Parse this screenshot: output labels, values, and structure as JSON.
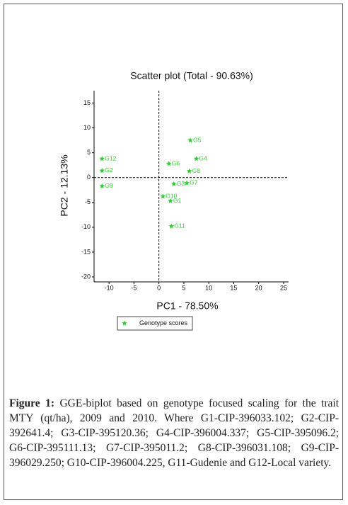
{
  "chart_data": {
    "type": "scatter",
    "title": "Scatter plot (Total - 90.63%)",
    "x_label": "PC1 - 78.50%",
    "y_label": "PC2 - 12.13%",
    "xlim": [
      -13,
      26
    ],
    "ylim": [
      -21,
      17.5
    ],
    "xticks": [
      -10,
      -5,
      0,
      5,
      10,
      15,
      20,
      25
    ],
    "yticks": [
      -20,
      -15,
      -10,
      -5,
      0,
      5,
      10,
      15
    ],
    "series": [
      {
        "name": "Genotype scores",
        "color": "#33cc33",
        "labels": [
          "G5",
          "G4",
          "G6",
          "G8",
          "G12",
          "G2",
          "G9",
          "G3",
          "G7",
          "G10",
          "G1",
          "G11"
        ],
        "x": [
          6.3,
          7.5,
          2.0,
          6.1,
          -11.4,
          -11.4,
          -11.4,
          3.0,
          5.6,
          0.8,
          2.3,
          2.5
        ],
        "values": [
          7.5,
          3.8,
          2.8,
          1.3,
          3.8,
          1.4,
          -1.7,
          -1.3,
          -1.1,
          -3.8,
          -4.7,
          -9.8
        ]
      }
    ]
  },
  "caption": {
    "label": "Figure 1:",
    "text": "GGE-biplot based on genotype focused scaling for the trait MTY (qt/ha), 2009 and 2010. Where G1-CIP-396033.102; G2-CIP-392641.4; G3-CIP-395120.36; G4-CIP-396004.337; G5-CIP-395096.2; G6-CIP-395111.13; G7-CIP-395011.2; G8-CIP-396031.108; G9-CIP-396029.250; G10-CIP-396004.225, G11-Gudenie and G12-Local variety."
  }
}
